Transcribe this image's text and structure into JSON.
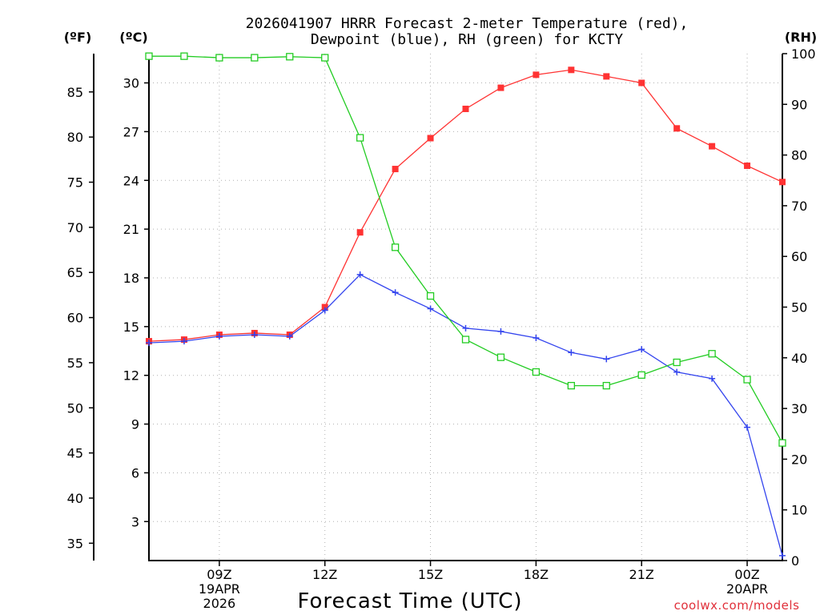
{
  "chart_data": {
    "type": "line",
    "title_line1": "2026041907 HRRR Forecast 2-meter Temperature (red),",
    "title_line2": "Dewpoint (blue), RH (green) for KCTY",
    "xlabel": "Forecast Time (UTC)",
    "credit": "coolwx.com/models",
    "unit_f": "(ºF)",
    "unit_c": "(ºC)",
    "unit_rh": "(RH)",
    "x_hours": [
      7,
      8,
      9,
      10,
      11,
      12,
      13,
      14,
      15,
      16,
      17,
      18,
      19,
      20,
      21,
      22,
      23,
      24,
      25
    ],
    "x_ticks": [
      {
        "h": 9,
        "lines": [
          "09Z",
          "19APR",
          "2026"
        ]
      },
      {
        "h": 12,
        "lines": [
          "12Z"
        ]
      },
      {
        "h": 15,
        "lines": [
          "15Z"
        ]
      },
      {
        "h": 18,
        "lines": [
          "18Z"
        ]
      },
      {
        "h": 21,
        "lines": [
          "21Z"
        ]
      },
      {
        "h": 24,
        "lines": [
          "00Z",
          "20APR"
        ]
      }
    ],
    "ylim_c": [
      0.6,
      31.8
    ],
    "yticks_c": [
      3,
      6,
      9,
      12,
      15,
      18,
      21,
      24,
      27,
      30
    ],
    "yticks_f": [
      35,
      40,
      45,
      50,
      55,
      60,
      65,
      70,
      75,
      80,
      85
    ],
    "ylim_rh": [
      0,
      100
    ],
    "yticks_rh": [
      0,
      10,
      20,
      30,
      40,
      50,
      60,
      70,
      80,
      90,
      100
    ],
    "series": [
      {
        "name": "Temperature",
        "unit": "C",
        "color": "#ff3333",
        "marker": "square-filled",
        "values": [
          14.1,
          14.2,
          14.5,
          14.6,
          14.5,
          16.2,
          20.8,
          24.7,
          26.6,
          28.4,
          29.7,
          30.5,
          30.8,
          30.4,
          30.0,
          27.2,
          26.1,
          24.9,
          23.9
        ]
      },
      {
        "name": "Dewpoint",
        "unit": "C",
        "color": "#3344ee",
        "marker": "plus",
        "values": [
          14.0,
          14.1,
          14.4,
          14.5,
          14.4,
          16.0,
          18.2,
          17.1,
          16.1,
          14.9,
          14.7,
          14.3,
          13.4,
          13.0,
          13.6,
          12.2,
          11.8,
          8.8,
          0.9
        ]
      },
      {
        "name": "RH",
        "unit": "%",
        "color": "#22cc22",
        "marker": "square-open",
        "values": [
          99.5,
          99.5,
          99.2,
          99.2,
          99.4,
          99.2,
          83.4,
          61.8,
          52.2,
          43.6,
          40.1,
          37.2,
          34.5,
          34.5,
          36.6,
          39.1,
          40.8,
          35.7,
          23.2
        ]
      }
    ]
  }
}
